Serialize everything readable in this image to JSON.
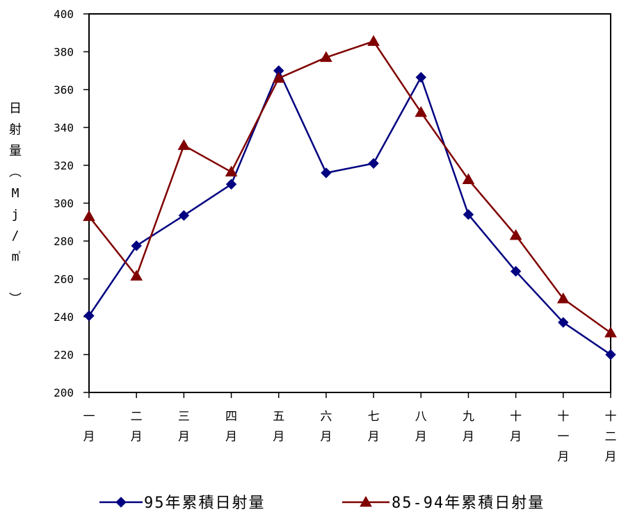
{
  "chart_data": {
    "type": "line",
    "ylabel": "日射量（Mj／m²）",
    "ylim": [
      200,
      400
    ],
    "yticks": [
      200,
      220,
      240,
      260,
      280,
      300,
      320,
      340,
      360,
      380,
      400
    ],
    "categories": [
      "一月",
      "二月",
      "三月",
      "四月",
      "五月",
      "六月",
      "七月",
      "八月",
      "九月",
      "十月",
      "十一月",
      "十二月"
    ],
    "grid": false,
    "legend_position": "bottom",
    "series": [
      {
        "name": "95年累積日射量",
        "color": "#000080",
        "marker": "diamond",
        "values": [
          240.5,
          277.5,
          293.5,
          310,
          370,
          316,
          321,
          366.5,
          294,
          264,
          237,
          220
        ]
      },
      {
        "name": "85-94年累積日射量",
        "color": "#800000",
        "marker": "triangle",
        "values": [
          293,
          261.5,
          330.5,
          316.5,
          366,
          377,
          385.5,
          348,
          312.5,
          283,
          249.5,
          231.5
        ]
      }
    ]
  }
}
